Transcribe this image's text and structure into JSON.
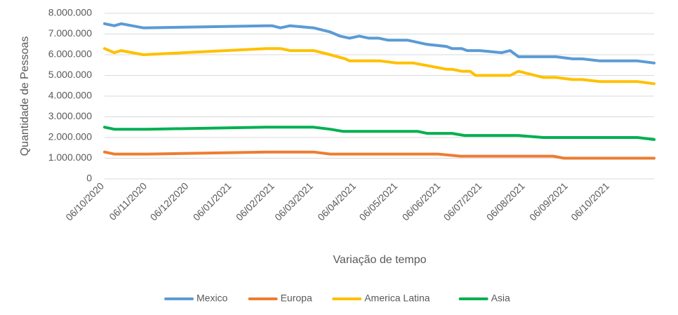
{
  "chart_data": {
    "type": "line",
    "xlabel": "Variação de tempo",
    "ylabel": "Quantidade de Pessoas",
    "ylim": [
      0,
      8000000
    ],
    "y_ticks": [
      "0",
      "1.000.000",
      "2.000.000",
      "3.000.000",
      "4.000.000",
      "5.000.000",
      "6.000.000",
      "7.000.000",
      "8.000.000"
    ],
    "x_tick_labels": [
      "06/10/2020",
      "06/11/2020",
      "06/12/2020",
      "06/01/2021",
      "06/02/2021",
      "06/03/2021",
      "06/04/2021",
      "06/05/2021",
      "06/06/2021",
      "06/07/2021",
      "06/08/2021",
      "06/09/2021",
      "06/10/2021"
    ],
    "x_ticks": [
      "2020-10-06",
      "2020-11-06",
      "2020-12-06",
      "2021-01-06",
      "2021-02-06",
      "2021-03-06",
      "2021-04-06",
      "2021-05-06",
      "2021-06-06",
      "2021-07-06",
      "2021-08-06",
      "2021-09-06",
      "2021-10-06"
    ],
    "xlim": [
      "2020-10-06",
      "2021-11-07"
    ],
    "grid": "horizontal",
    "legend_position": "bottom",
    "series": [
      {
        "name": "Mexico",
        "color": "#5b9bd5",
        "points": [
          [
            "2020-10-06",
            7500000
          ],
          [
            "2020-10-13",
            7400000
          ],
          [
            "2020-10-18",
            7500000
          ],
          [
            "2020-11-03",
            7300000
          ],
          [
            "2021-01-31",
            7400000
          ],
          [
            "2021-02-04",
            7400000
          ],
          [
            "2021-02-10",
            7300000
          ],
          [
            "2021-02-17",
            7400000
          ],
          [
            "2021-03-06",
            7300000
          ],
          [
            "2021-03-18",
            7100000
          ],
          [
            "2021-03-25",
            6900000
          ],
          [
            "2021-04-01",
            6800000
          ],
          [
            "2021-04-08",
            6900000
          ],
          [
            "2021-04-15",
            6800000
          ],
          [
            "2021-04-22",
            6800000
          ],
          [
            "2021-04-29",
            6700000
          ],
          [
            "2021-05-13",
            6700000
          ],
          [
            "2021-05-20",
            6600000
          ],
          [
            "2021-05-27",
            6500000
          ],
          [
            "2021-06-10",
            6400000
          ],
          [
            "2021-06-14",
            6300000
          ],
          [
            "2021-06-21",
            6300000
          ],
          [
            "2021-06-25",
            6200000
          ],
          [
            "2021-07-04",
            6200000
          ],
          [
            "2021-07-20",
            6100000
          ],
          [
            "2021-07-26",
            6200000
          ],
          [
            "2021-08-01",
            5900000
          ],
          [
            "2021-08-28",
            5900000
          ],
          [
            "2021-09-09",
            5800000
          ],
          [
            "2021-09-16",
            5800000
          ],
          [
            "2021-09-29",
            5700000
          ],
          [
            "2021-10-26",
            5700000
          ],
          [
            "2021-11-07",
            5600000
          ]
        ]
      },
      {
        "name": "Europa",
        "color": "#ed7d31",
        "points": [
          [
            "2020-10-06",
            1300000
          ],
          [
            "2020-10-13",
            1200000
          ],
          [
            "2020-11-06",
            1200000
          ],
          [
            "2021-01-31",
            1300000
          ],
          [
            "2021-03-06",
            1300000
          ],
          [
            "2021-03-18",
            1200000
          ],
          [
            "2021-06-04",
            1200000
          ],
          [
            "2021-06-20",
            1100000
          ],
          [
            "2021-08-26",
            1100000
          ],
          [
            "2021-09-03",
            1000000
          ],
          [
            "2021-11-07",
            1000000
          ]
        ]
      },
      {
        "name": "America Latina",
        "color": "#ffc000",
        "points": [
          [
            "2020-10-06",
            6300000
          ],
          [
            "2020-10-13",
            6100000
          ],
          [
            "2020-10-18",
            6200000
          ],
          [
            "2020-11-03",
            6000000
          ],
          [
            "2021-01-31",
            6300000
          ],
          [
            "2021-02-10",
            6300000
          ],
          [
            "2021-02-17",
            6200000
          ],
          [
            "2021-03-06",
            6200000
          ],
          [
            "2021-03-18",
            6000000
          ],
          [
            "2021-03-29",
            5800000
          ],
          [
            "2021-04-01",
            5700000
          ],
          [
            "2021-04-23",
            5700000
          ],
          [
            "2021-05-05",
            5600000
          ],
          [
            "2021-05-17",
            5600000
          ],
          [
            "2021-06-10",
            5300000
          ],
          [
            "2021-06-14",
            5300000
          ],
          [
            "2021-06-21",
            5200000
          ],
          [
            "2021-06-27",
            5200000
          ],
          [
            "2021-07-01",
            5000000
          ],
          [
            "2021-07-26",
            5000000
          ],
          [
            "2021-08-01",
            5200000
          ],
          [
            "2021-08-19",
            4900000
          ],
          [
            "2021-08-28",
            4900000
          ],
          [
            "2021-09-09",
            4800000
          ],
          [
            "2021-09-16",
            4800000
          ],
          [
            "2021-09-29",
            4700000
          ],
          [
            "2021-10-26",
            4700000
          ],
          [
            "2021-11-07",
            4600000
          ]
        ]
      },
      {
        "name": "Asia",
        "color": "#00b050",
        "points": [
          [
            "2020-10-06",
            2500000
          ],
          [
            "2020-10-13",
            2400000
          ],
          [
            "2020-11-06",
            2400000
          ],
          [
            "2021-01-31",
            2500000
          ],
          [
            "2021-03-06",
            2500000
          ],
          [
            "2021-03-18",
            2400000
          ],
          [
            "2021-03-27",
            2300000
          ],
          [
            "2021-05-20",
            2300000
          ],
          [
            "2021-05-27",
            2200000
          ],
          [
            "2021-06-14",
            2200000
          ],
          [
            "2021-06-23",
            2100000
          ],
          [
            "2021-08-01",
            2100000
          ],
          [
            "2021-08-19",
            2000000
          ],
          [
            "2021-10-26",
            2000000
          ],
          [
            "2021-11-07",
            1900000
          ]
        ]
      }
    ]
  }
}
